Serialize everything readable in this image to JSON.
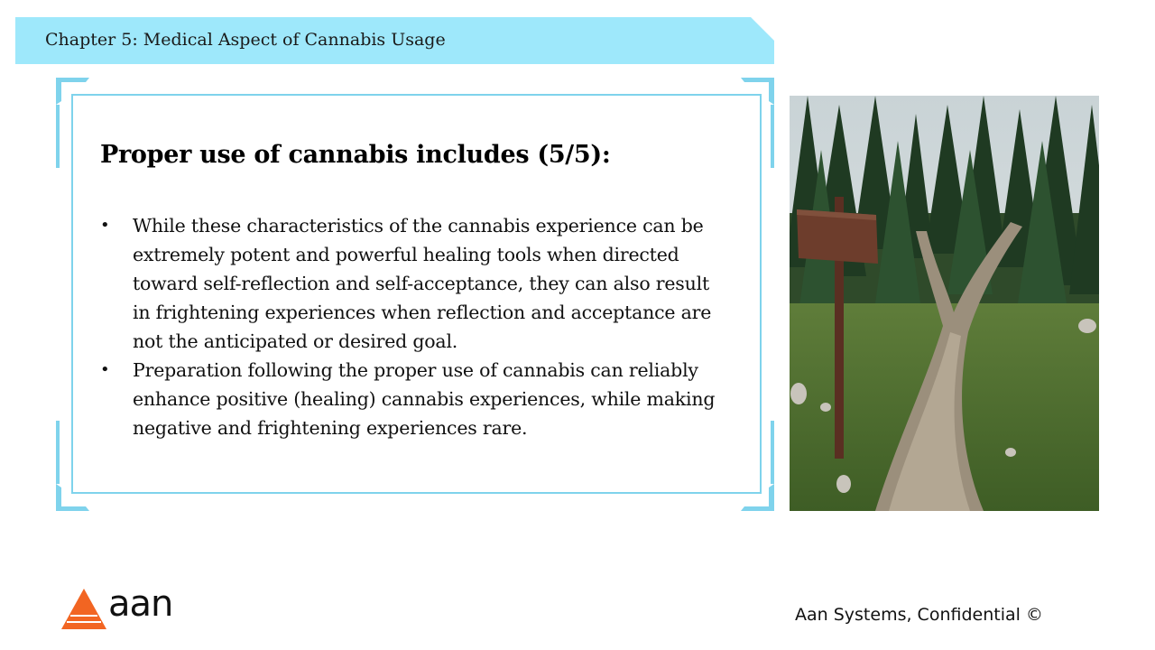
{
  "header": {
    "chapter_title": "Chapter 5: Medical Aspect of Cannabis Usage"
  },
  "slide": {
    "heading": "Proper use of cannabis includes (5/5):",
    "bullet_marker": "•",
    "bullets": [
      "While these characteristics of the cannabis experience can be extremely potent and powerful healing tools when directed toward self-reflection and self-acceptance, they can also result in frightening experiences when reflection and acceptance are not the anticipated or desired goal.",
      "Preparation following the proper use of cannabis can reliably enhance positive (healing) cannabis experiences, while making negative and frightening experiences rare."
    ]
  },
  "photo": {
    "icon": "forest-fork-trail-photo"
  },
  "footer": {
    "logo_text": "aan",
    "confidential_text": "Aan Systems, Confidential ©"
  },
  "colors": {
    "banner": "#9ee8fb",
    "frame_accent": "#7fd3ec",
    "logo_orange": "#f26522"
  }
}
